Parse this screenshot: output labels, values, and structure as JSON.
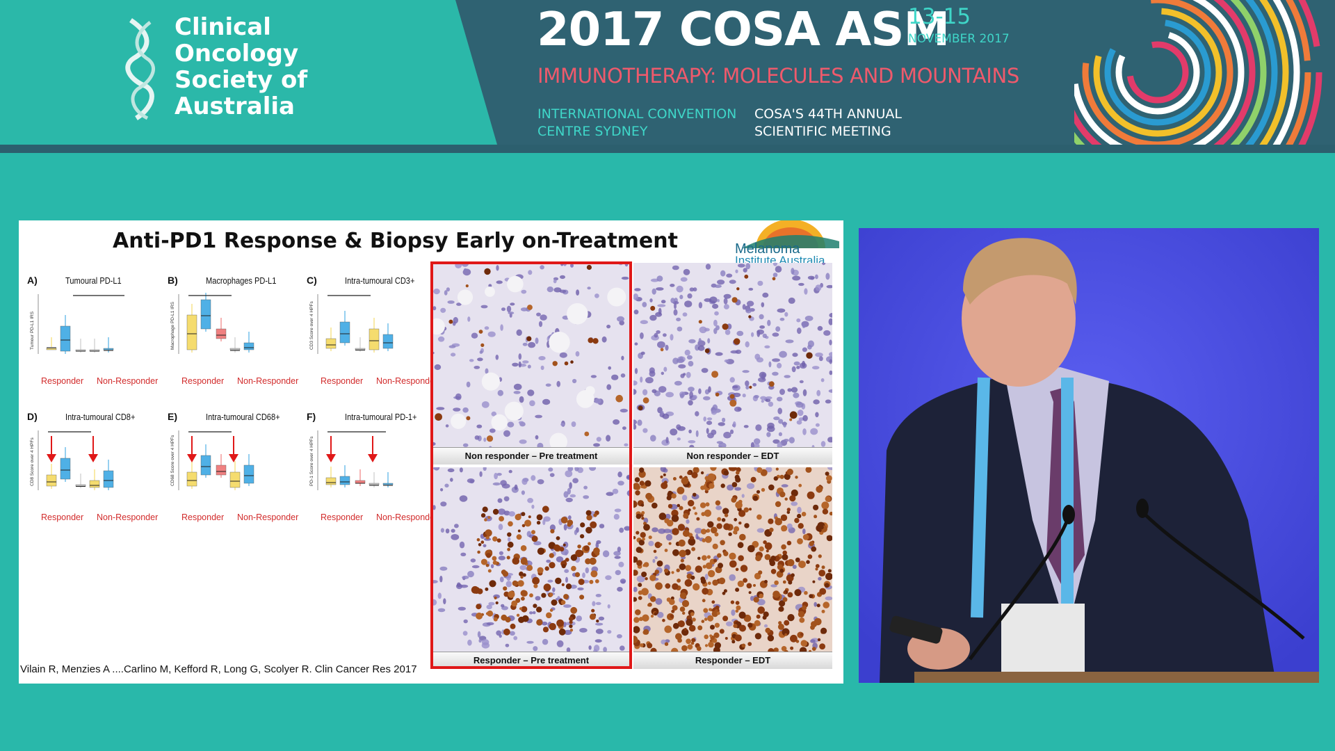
{
  "banner": {
    "org_name": [
      "Clinical",
      "Oncology",
      "Society of",
      "Australia"
    ],
    "event_title": "2017 COSA ASM",
    "event_dates": "13-15",
    "event_month": "NOVEMBER 2017",
    "event_theme": "IMMUNOTHERAPY: MOLECULES AND MOUNTAINS",
    "venue": [
      "INTERNATIONAL CONVENTION",
      "CENTRE  SYDNEY"
    ],
    "meeting": [
      "COSA'S 44TH ANNUAL",
      "SCIENTIFIC MEETING"
    ]
  },
  "slide": {
    "title": "Anti-PD1 Response & Biopsy Early on-Treatment",
    "logo": [
      "Melanoma",
      "Institute Australia"
    ],
    "citation": "Vilain R, Menzies A ....Carlino M, Kefford R,  Long G, Scolyer R. Clin Cancer Res  2017",
    "panels": [
      {
        "label": "A)",
        "title": "Tumoural PD-L1",
        "ylabel": "Tumour PD-L1 IRS",
        "groups": [
          "Responder",
          "Non-Responder"
        ]
      },
      {
        "label": "B)",
        "title": "Macrophages PD-L1",
        "ylabel": "Macrophage PD-L1 IRS",
        "groups": [
          "Responder",
          "Non-Responder"
        ]
      },
      {
        "label": "C)",
        "title": "Intra-tumoural CD3+",
        "ylabel": "CD3 Score over 4 HPFs",
        "groups": [
          "Responder",
          "Non-Responder"
        ]
      },
      {
        "label": "D)",
        "title": "Intra-tumoural CD8+",
        "ylabel": "CD8 Score over 4 HPFs",
        "groups": [
          "Responder",
          "Non-Responder"
        ]
      },
      {
        "label": "E)",
        "title": "Intra-tumoural CD68+",
        "ylabel": "CD68 Score over 4 HPFs",
        "groups": [
          "Responder",
          "Non-Responder"
        ]
      },
      {
        "label": "F)",
        "title": "Intra-tumoural PD-1+",
        "ylabel": "PD-1 Score over 4 HPFs",
        "groups": [
          "Responder",
          "Non-Responder"
        ]
      }
    ],
    "micrographs": [
      {
        "caption": "Non responder – Pre treatment"
      },
      {
        "caption": "Non responder – EDT"
      },
      {
        "caption": "Responder – Pre treatment"
      },
      {
        "caption": "Responder – EDT"
      }
    ]
  },
  "colors": {
    "teal": "#29b8aa",
    "banner_dark": "#2f6272",
    "theme_red": "#ef5a6c",
    "box_yellow": "#f5dc6e",
    "box_blue": "#4fb0e6",
    "box_red": "#f08080",
    "highlight": "#e01818"
  }
}
